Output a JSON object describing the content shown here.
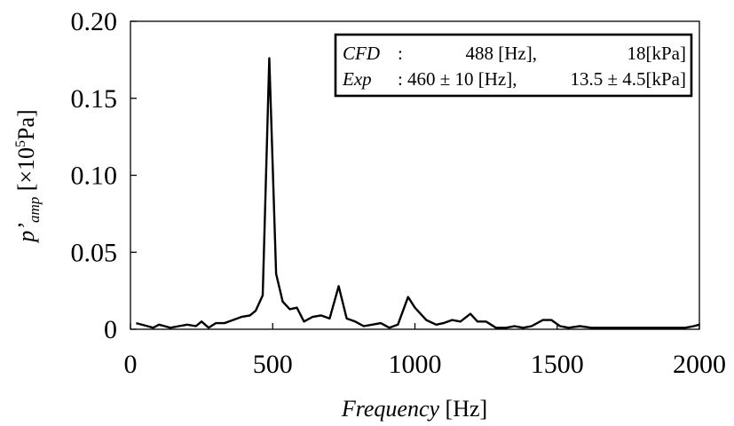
{
  "chart_data": {
    "type": "line",
    "title": "",
    "xlabel": {
      "italic": "Frequency",
      "rest": " [Hz]"
    },
    "ylabel": {
      "main": "p",
      "prime": "’",
      "sub": "amp",
      "bracket": " [×10",
      "sup": "5",
      "unit": "Pa]"
    },
    "xlim": [
      0,
      2000
    ],
    "ylim": [
      0,
      0.2
    ],
    "xticks": [
      "0",
      "500",
      "1000",
      "1500",
      "2000"
    ],
    "yticks": [
      "0",
      "0.05",
      "0.10",
      "0.15",
      "0.20"
    ],
    "legend": {
      "placement": "top-right",
      "rows": [
        {
          "label": "CFD",
          "sep": ":",
          "freq": "488 [Hz],",
          "amp": "18[kPa]"
        },
        {
          "label": "Exp",
          "sep": ":",
          "freq": "460 ± 10 [Hz],",
          "amp": "13.5 ± 4.5[kPa]"
        }
      ]
    },
    "series": [
      {
        "color": "#000000",
        "x": [
          20,
          60,
          80,
          100,
          120,
          140,
          170,
          200,
          230,
          250,
          275,
          300,
          330,
          360,
          390,
          420,
          440,
          465,
          488,
          512,
          535,
          560,
          585,
          610,
          640,
          670,
          700,
          732,
          760,
          790,
          820,
          850,
          880,
          910,
          940,
          976,
          1000,
          1040,
          1075,
          1100,
          1130,
          1160,
          1195,
          1220,
          1250,
          1285,
          1320,
          1350,
          1380,
          1410,
          1450,
          1480,
          1510,
          1540,
          1580,
          1620,
          1660,
          1700,
          1750,
          1800,
          1850,
          1900,
          1950,
          1980,
          2000
        ],
        "y": [
          0.004,
          0.002,
          0.001,
          0.003,
          0.002,
          0.001,
          0.002,
          0.003,
          0.002,
          0.005,
          0.001,
          0.004,
          0.004,
          0.006,
          0.008,
          0.009,
          0.012,
          0.022,
          0.176,
          0.036,
          0.018,
          0.013,
          0.014,
          0.005,
          0.008,
          0.009,
          0.007,
          0.028,
          0.007,
          0.005,
          0.002,
          0.003,
          0.004,
          0.001,
          0.003,
          0.021,
          0.014,
          0.006,
          0.003,
          0.004,
          0.006,
          0.005,
          0.01,
          0.005,
          0.005,
          0.001,
          0.001,
          0.002,
          0.001,
          0.002,
          0.006,
          0.006,
          0.002,
          0.001,
          0.002,
          0.001,
          0.001,
          0.001,
          0.001,
          0.001,
          0.001,
          0.001,
          0.001,
          0.002,
          0.003
        ]
      }
    ]
  }
}
